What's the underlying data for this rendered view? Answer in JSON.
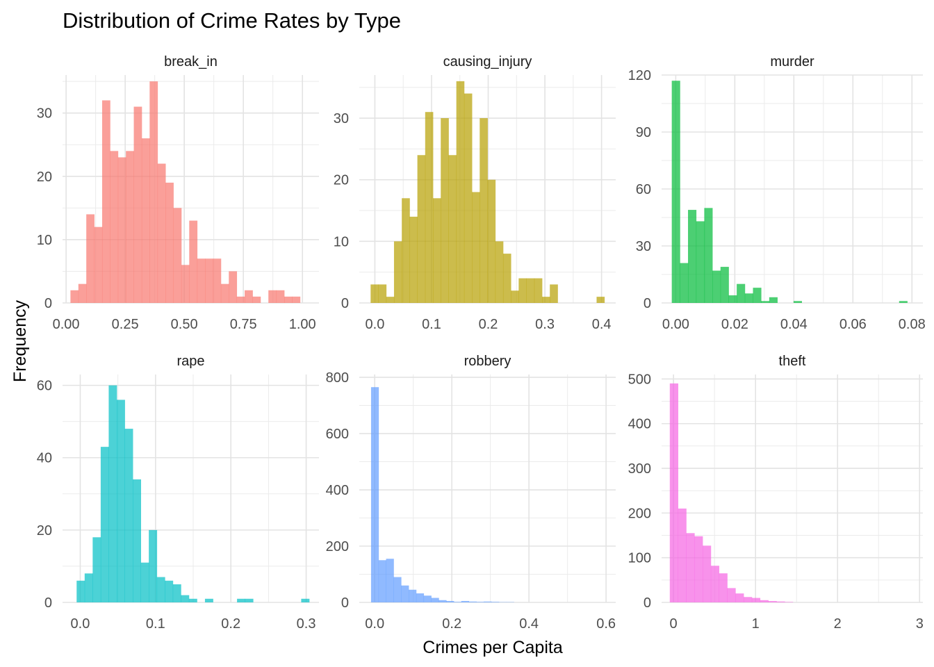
{
  "chart_data": {
    "type": "bar",
    "title": "Distribution of Crime Rates by Type",
    "xlabel": "Crimes per Capita",
    "ylabel": "Frequency",
    "grid": true,
    "legend": "none",
    "panels": [
      {
        "name": "break_in",
        "color": "#F8766D",
        "xlim": [
          -0.015,
          1.07
        ],
        "ylim": [
          0,
          36
        ],
        "xticks": [
          0.0,
          0.25,
          0.5,
          0.75,
          1.0
        ],
        "xtick_labels": [
          "0.00",
          "0.25",
          "0.50",
          "0.75",
          "1.00"
        ],
        "yticks": [
          0,
          10,
          20,
          30
        ],
        "bins": {
          "start": 0.0185,
          "width": 0.0335,
          "values": [
            2,
            3,
            14,
            12,
            32,
            24,
            23,
            24,
            31,
            26,
            35,
            22,
            19,
            15,
            6,
            13,
            7,
            7,
            7,
            3,
            5,
            1,
            2,
            1,
            0,
            2,
            2,
            1,
            1
          ]
        }
      },
      {
        "name": "causing_injury",
        "color": "#B79F00",
        "xlim": [
          -0.0275,
          0.425
        ],
        "ylim": [
          0,
          37
        ],
        "xticks": [
          0.0,
          0.1,
          0.2,
          0.3,
          0.4
        ],
        "xtick_labels": [
          "0.0",
          "0.1",
          "0.2",
          "0.3",
          "0.4"
        ],
        "yticks": [
          0,
          10,
          20,
          30
        ],
        "bins": {
          "start": -0.0075,
          "width": 0.01375,
          "values": [
            3,
            3,
            1,
            10,
            17,
            14,
            24,
            31,
            17,
            30,
            24,
            36,
            34,
            18,
            30,
            20,
            10,
            8,
            2,
            4,
            4,
            4,
            1,
            3,
            0,
            0,
            0,
            0,
            0,
            1
          ]
        }
      },
      {
        "name": "murder",
        "color": "#00BA38",
        "xlim": [
          -0.0048,
          0.0837
        ],
        "ylim": [
          0,
          120
        ],
        "xticks": [
          0.0,
          0.02,
          0.04,
          0.06,
          0.08
        ],
        "xtick_labels": [
          "0.00",
          "0.02",
          "0.04",
          "0.06",
          "0.08"
        ],
        "yticks": [
          0,
          30,
          60,
          90,
          120
        ],
        "bins": {
          "start": -0.00135,
          "width": 0.00275,
          "values": [
            117,
            21,
            49,
            43,
            50,
            17,
            19,
            4,
            10,
            5,
            8,
            1,
            3,
            0,
            0,
            1,
            0,
            0,
            0,
            0,
            0,
            0,
            0,
            0,
            0,
            0,
            0,
            0,
            1
          ]
        }
      },
      {
        "name": "rape",
        "color": "#00BFC4",
        "xlim": [
          -0.0235,
          0.317
        ],
        "ylim": [
          0,
          63
        ],
        "xticks": [
          0.0,
          0.1,
          0.2,
          0.3
        ],
        "xtick_labels": [
          "0.0",
          "0.1",
          "0.2",
          "0.3"
        ],
        "yticks": [
          0,
          20,
          40,
          60
        ],
        "bins": {
          "start": -0.0048,
          "width": 0.01065,
          "values": [
            6,
            8,
            18,
            43,
            60,
            56,
            48,
            34,
            11,
            20,
            7,
            6,
            5,
            2,
            1,
            0,
            1,
            0,
            0,
            0,
            1,
            1,
            0,
            0,
            0,
            0,
            0,
            0,
            1
          ]
        }
      },
      {
        "name": "robbery",
        "color": "#619CFF",
        "xlim": [
          -0.04,
          0.625
        ],
        "ylim": [
          0,
          810
        ],
        "xticks": [
          0.0,
          0.2,
          0.4,
          0.6
        ],
        "xtick_labels": [
          "0.0",
          "0.2",
          "0.4",
          "0.6"
        ],
        "yticks": [
          0,
          200,
          400,
          600,
          800
        ],
        "bins": {
          "start": -0.0095,
          "width": 0.0195,
          "values": [
            765,
            150,
            155,
            90,
            60,
            45,
            32,
            24,
            16,
            8,
            5,
            2,
            5,
            3,
            2,
            3,
            2,
            1,
            1,
            0,
            0,
            0,
            0,
            0,
            0,
            0,
            0,
            0,
            0,
            0
          ]
        }
      },
      {
        "name": "theft",
        "color": "#F564E3",
        "xlim": [
          -0.145,
          3.04
        ],
        "ylim": [
          0,
          510
        ],
        "xticks": [
          0,
          1,
          2,
          3
        ],
        "xtick_labels": [
          "0",
          "1",
          "2",
          "3"
        ],
        "yticks": [
          0,
          100,
          200,
          300,
          400,
          500
        ],
        "bins": {
          "start": -0.045,
          "width": 0.1,
          "values": [
            490,
            210,
            155,
            148,
            127,
            82,
            65,
            32,
            20,
            12,
            10,
            5,
            3,
            2,
            1,
            0,
            0,
            0,
            0,
            0,
            0,
            0,
            0,
            0,
            0,
            0,
            0,
            0,
            0,
            0
          ]
        }
      }
    ]
  }
}
